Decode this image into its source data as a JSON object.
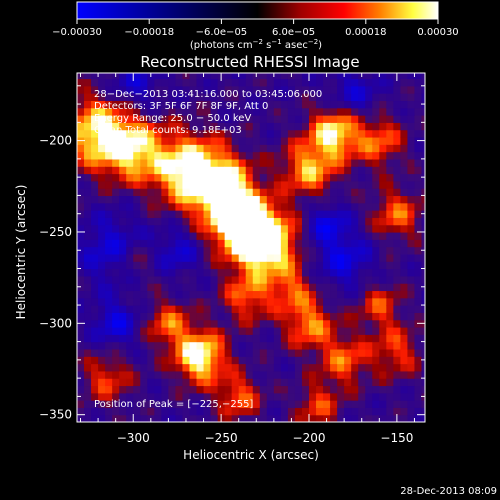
{
  "chart_data": {
    "type": "heatmap",
    "title": "Reconstructed RHESSI Image",
    "xlabel": "Heliocentric X (arcsec)",
    "ylabel": "Heliocentric Y (arcsec)",
    "xlim": [
      -332,
      -134
    ],
    "ylim": [
      -354,
      -163
    ],
    "x_ticks": [
      {
        "value": -300,
        "label": "−300"
      },
      {
        "value": -250,
        "label": "−250"
      },
      {
        "value": -200,
        "label": "−200"
      },
      {
        "value": -150,
        "label": "−150"
      }
    ],
    "y_ticks": [
      {
        "value": -200,
        "label": "−200"
      },
      {
        "value": -250,
        "label": "−250"
      },
      {
        "value": -300,
        "label": "−300"
      },
      {
        "value": -350,
        "label": "−350"
      }
    ],
    "colorbar": {
      "min": -0.0003,
      "max": 0.0003,
      "ticks": [
        {
          "value": -0.0003,
          "label": "−0.00030"
        },
        {
          "value": -0.00018,
          "label": "−0.00018"
        },
        {
          "value": -6e-05,
          "label": "−6.0e−05"
        },
        {
          "value": 6e-05,
          "label": "6.0e−05"
        },
        {
          "value": 0.00018,
          "label": "0.00018"
        },
        {
          "value": 0.0003,
          "label": "0.00030"
        }
      ],
      "unit": {
        "prefix": "(photons cm",
        "exp1": "−2",
        "mid1": " s",
        "exp2": "−1",
        "mid2": " asec",
        "exp3": "−2",
        "suffix": ")"
      },
      "colors": [
        "#0000ff",
        "#000000",
        "#a00000",
        "#ff0000",
        "#ff8000",
        "#ffff40",
        "#ffffff"
      ]
    },
    "annotations": [
      "28−Dec−2013 03:41:16.000 to 03:45:06.000",
      "Detectors: 3F 5F 6F 7F 8F 9F, Att 0",
      "Energy Range: 25.0 − 50.0 keV",
      "Clean     Total counts: 9.18E+03"
    ],
    "peak_label": "Position of Peak = [−225,−255]",
    "peak_position": [
      -225,
      -255
    ],
    "grid": false
  },
  "footer": {
    "timestamp": "28-Dec-2013 08:09"
  }
}
